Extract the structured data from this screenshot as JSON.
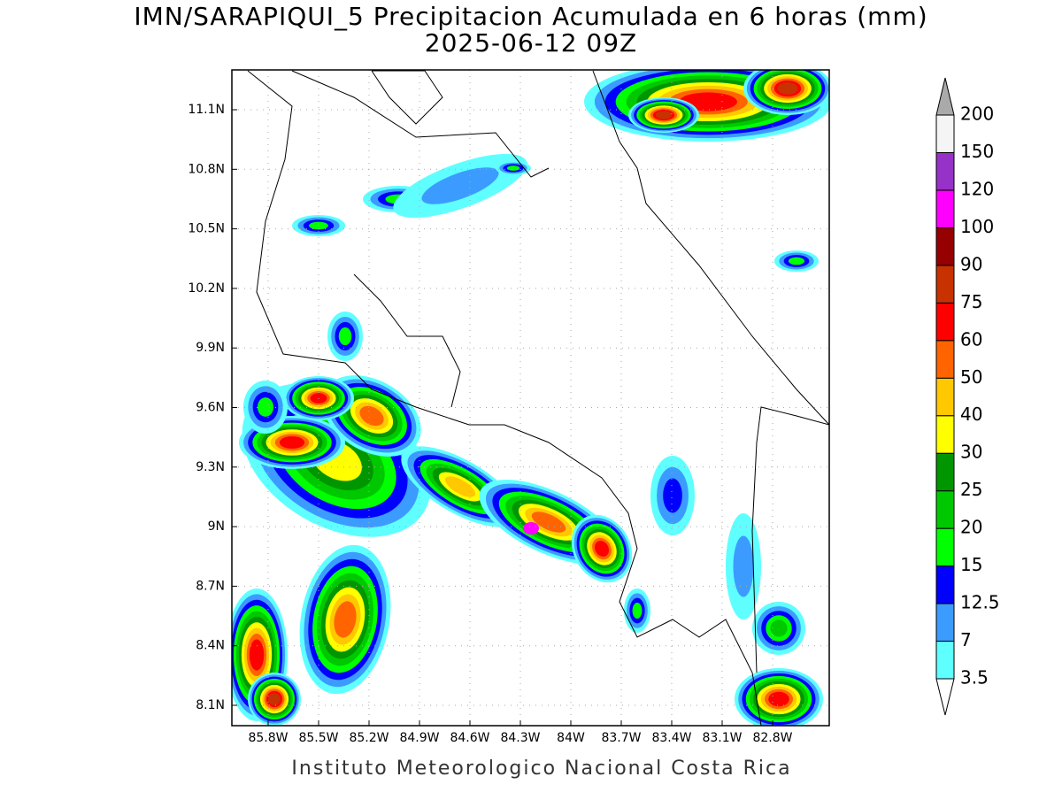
{
  "title": "IMN/SARAPIQUI_5 Precipitacion Acumulada en 6 horas (mm)",
  "subtitle": "2025-06-12 09Z",
  "map": {
    "lat_ticks": [
      "11.1N",
      "10.8N",
      "10.5N",
      "10.2N",
      "9.9N",
      "9.6N",
      "9.3N",
      "9N",
      "8.7N",
      "8.4N",
      "8.1N"
    ],
    "lon_ticks": [
      "85.8W",
      "85.5W",
      "85.2W",
      "84.9W",
      "84.6W",
      "84.3W",
      "84W",
      "83.7W",
      "83.4W",
      "83.1W",
      "82.8W"
    ]
  },
  "colorbar": {
    "levels": [
      3.5,
      7,
      12.5,
      15,
      20,
      25,
      30,
      40,
      50,
      60,
      75,
      90,
      100,
      120,
      150,
      200
    ],
    "colors": [
      "#5fffff",
      "#3c9bff",
      "#0000ff",
      "#00ff00",
      "#00c800",
      "#009600",
      "#ffff00",
      "#ffc800",
      "#ff6400",
      "#ff0000",
      "#c83200",
      "#960000",
      "#ff00ff",
      "#9632c8",
      "#f5f5f5"
    ],
    "under_color": "#ffffff",
    "over_color": "#aaaaaa"
  },
  "footer": "Instituto Meteorologico Nacional Costa Rica"
}
